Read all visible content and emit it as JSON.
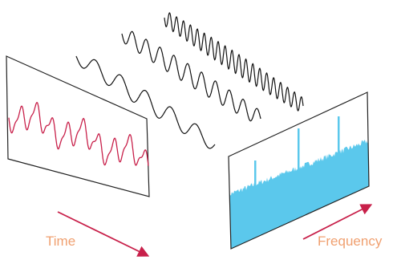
{
  "labels": {
    "time": "Time",
    "frequency": "Frequency"
  }
}
